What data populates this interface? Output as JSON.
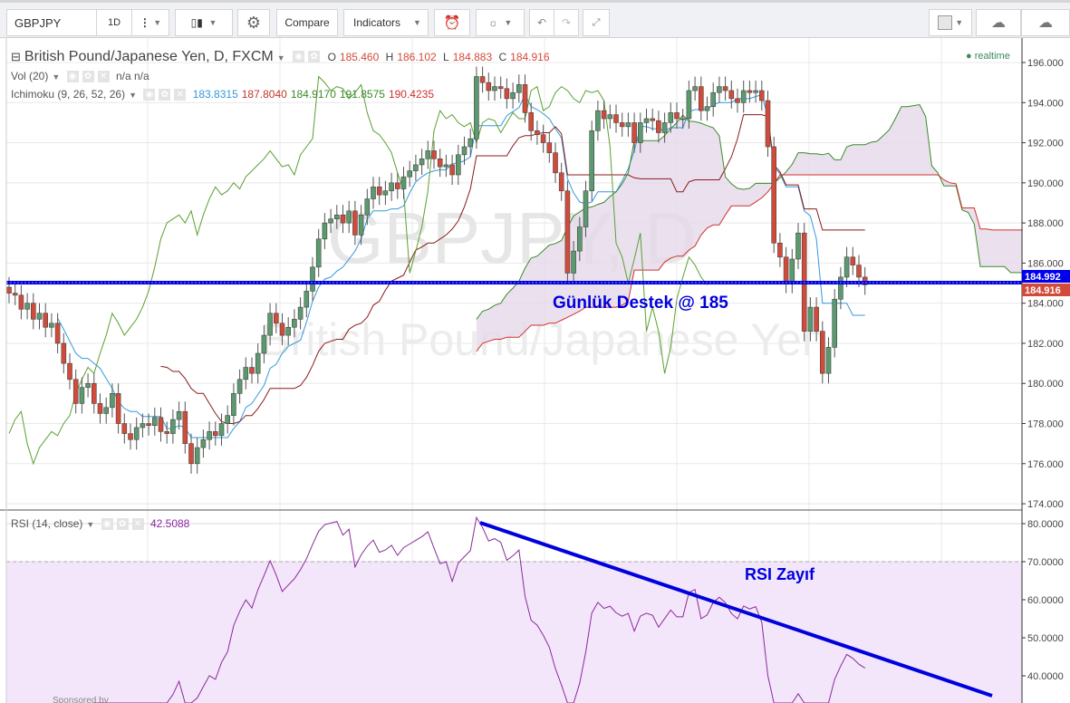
{
  "toolbar": {
    "symbol": "GBPJPY",
    "interval": "1D",
    "compare": "Compare",
    "indicators": "Indicators",
    "icons": [
      "more-vert-icon",
      "candlestick-icon",
      "gear-icon",
      "alarm-add-icon",
      "lightbulb-icon",
      "undo-icon",
      "redo-icon",
      "fullscreen-icon",
      "color-square-icon",
      "cloud-download-icon",
      "cloud-upload-icon"
    ]
  },
  "legend": {
    "title": "British Pound/Japanese Yen, D, FXCM",
    "o_label": "O",
    "o": "185.460",
    "h_label": "H",
    "h": "186.102",
    "l_label": "L",
    "l": "184.883",
    "c_label": "C",
    "c": "184.916",
    "vol": "Vol (20)",
    "vol_vals": "n/a  n/a",
    "ichimoku": "Ichimoku (9, 26, 52, 26)",
    "ichi_vals": [
      "183.8315",
      "187.8040",
      "184.9170",
      "191.8575",
      "190.4235"
    ],
    "realtime": "realtime",
    "rsi": "RSI (14, close)",
    "rsi_val": "42.5088",
    "sponsored": "Sponsored by"
  },
  "watermark": {
    "symbol": "GBPJPY, D",
    "name": "British Pound/Japanese Yen"
  },
  "annotations": {
    "support": "Günlük Destek @ 185",
    "rsi_note": "RSI Zayıf"
  },
  "colors": {
    "up": "#5b9a6e",
    "down": "#d24b3a",
    "tenkan": "#3399dd",
    "kijun": "#8b1a1a",
    "spanA": "#3a8a2a",
    "spanB": "#d03030",
    "chikou": "#5aa030",
    "cloud": "#e6d8ea",
    "rsi": "#8a2a9a",
    "annotation": "#0000dd"
  },
  "chart_data": [
    {
      "type": "candlestick",
      "title": "British Pound/Japanese Yen, D, FXCM",
      "ylim": [
        174,
        196
      ],
      "yticks": [
        "196.000",
        "194.000",
        "192.000",
        "190.000",
        "188.000",
        "186.000",
        "184.000",
        "182.000",
        "180.000",
        "178.000",
        "176.000",
        "174.000"
      ],
      "last_price_labels": [
        "184.992",
        "184.916"
      ],
      "support_level": 185,
      "close": [
        184.5,
        184.4,
        183.7,
        184.0,
        183.2,
        183.5,
        182.8,
        183.0,
        182.0,
        181.0,
        180.2,
        179.0,
        179.8,
        180.0,
        179.0,
        178.5,
        178.8,
        179.5,
        178.0,
        177.5,
        177.2,
        177.8,
        178.0,
        177.9,
        178.3,
        177.6,
        177.5,
        178.2,
        178.6,
        177.0,
        176.0,
        176.8,
        177.2,
        177.6,
        177.4,
        178.0,
        178.4,
        179.5,
        180.2,
        180.8,
        180.5,
        181.5,
        182.4,
        183.5,
        183.0,
        182.4,
        182.8,
        183.2,
        183.8,
        184.6,
        185.8,
        187.2,
        188.0,
        188.2,
        188.4,
        188.0,
        188.6,
        187.4,
        188.4,
        189.2,
        189.8,
        189.4,
        189.6,
        190.0,
        189.7,
        190.3,
        190.6,
        190.9,
        191.2,
        191.6,
        191.2,
        190.8,
        190.9,
        190.4,
        191.4,
        191.8,
        192.2,
        195.3,
        195.0,
        194.6,
        194.8,
        194.7,
        194.2,
        194.5,
        194.9,
        193.5,
        192.6,
        192.4,
        192.0,
        191.5,
        190.5,
        189.6,
        185.5,
        186.6,
        187.8,
        189.6,
        192.6,
        193.6,
        193.2,
        193.4,
        193.0,
        192.8,
        193.0,
        192.0,
        193.0,
        193.2,
        193.1,
        192.5,
        193.0,
        193.5,
        193.2,
        193.2,
        194.6,
        194.8,
        193.6,
        193.8,
        194.5,
        194.8,
        194.6,
        194.2,
        194.0,
        194.6,
        194.5,
        194.6,
        194.1,
        191.8,
        187.0,
        186.3,
        185.0,
        186.2,
        187.5,
        182.6,
        183.8,
        182.6,
        180.5,
        181.8,
        184.2,
        185.3,
        186.3,
        185.9,
        185.3,
        184.916
      ]
    },
    {
      "type": "line",
      "title": "RSI (14, close)",
      "ylim": [
        35,
        82
      ],
      "yticks": [
        "80.0000",
        "70.0000",
        "60.0000",
        "50.0000",
        "40.0000"
      ],
      "band": [
        30,
        70
      ]
    }
  ]
}
